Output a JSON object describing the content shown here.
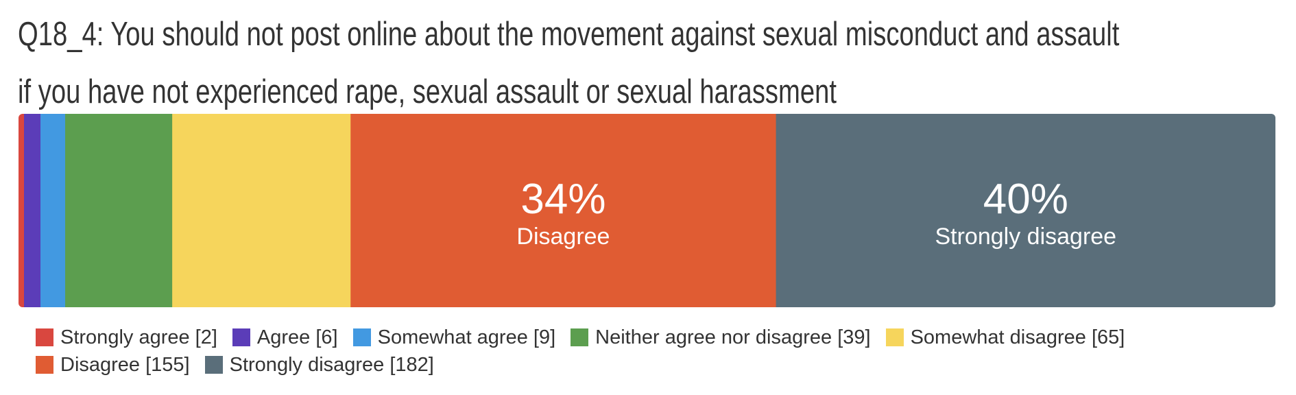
{
  "title_lines": [
    "Q18_4: You should not post online about the movement against sexual misconduct and assault",
    "if you have not experienced rape, sexual assault or sexual harassment"
  ],
  "chart_data": {
    "type": "bar",
    "orientation": "horizontal-stacked-100",
    "title": "Q18_4: You should not post online about the movement against sexual misconduct and assault if you have not experienced rape, sexual assault or sexual harassment",
    "series": [
      {
        "name": "Strongly agree",
        "count": 2,
        "color": "#d9473f",
        "legend": "Strongly agree [2]"
      },
      {
        "name": "Agree",
        "count": 6,
        "color": "#5b3db8",
        "legend": "Agree [6]"
      },
      {
        "name": "Somewhat agree",
        "count": 9,
        "color": "#4299e1",
        "legend": "Somewhat agree [9]"
      },
      {
        "name": "Neither agree nor disagree",
        "count": 39,
        "color": "#5c9e4f",
        "legend": "Neither agree nor disagree [39]"
      },
      {
        "name": "Somewhat disagree",
        "count": 65,
        "color": "#f6d55c",
        "legend": "Somewhat disagree [65]"
      },
      {
        "name": "Disagree",
        "count": 155,
        "color": "#e05c33",
        "legend": "Disagree [155]",
        "segment_label": {
          "pct": "34%",
          "name": "Disagree"
        }
      },
      {
        "name": "Strongly disagree",
        "count": 182,
        "color": "#5a6e7a",
        "legend": "Strongly disagree [182]",
        "segment_label": {
          "pct": "40%",
          "name": "Strongly disagree"
        }
      }
    ],
    "legend_position": "bottom",
    "legend_rows": [
      [
        0,
        1,
        2,
        3,
        4
      ],
      [
        5,
        6
      ]
    ]
  }
}
